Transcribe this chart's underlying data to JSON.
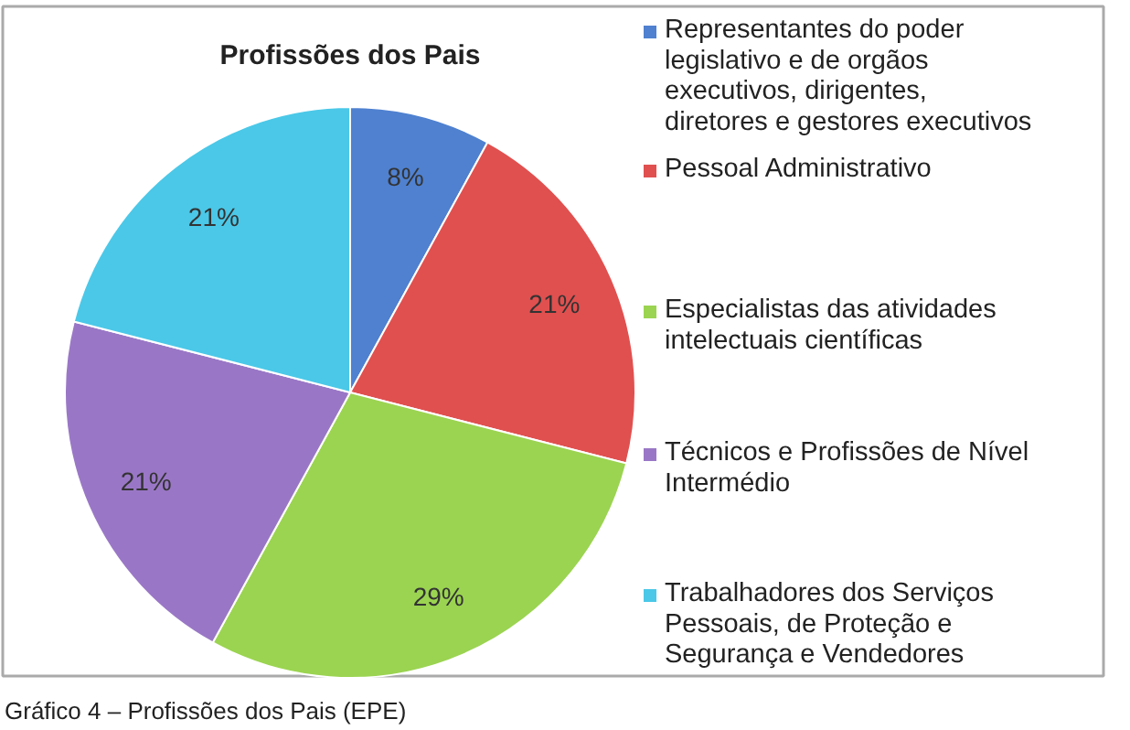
{
  "chart_data": {
    "type": "pie",
    "title": "Profissões dos Pais",
    "categories": [
      "Representantes do poder legislativo e de orgãos executivos, dirigentes, diretores e gestores executivos",
      "Pessoal Administrativo",
      "Especialistas das atividades intelectuais científicas",
      "Técnicos e Profissões de Nível Intermédio",
      "Trabalhadores dos Serviços Pessoais, de Proteção e Segurança e Vendedores"
    ],
    "values": [
      8,
      21,
      29,
      21,
      21
    ],
    "value_labels": [
      "8%",
      "21%",
      "29%",
      "21%",
      "21%"
    ],
    "colors": [
      "#4f81d0",
      "#e0504f",
      "#9bd451",
      "#9a77c6",
      "#4bc8e8"
    ],
    "legend": "right",
    "annotations": [
      "Gráfico 4 – Profissões dos Pais (EPE)"
    ]
  }
}
